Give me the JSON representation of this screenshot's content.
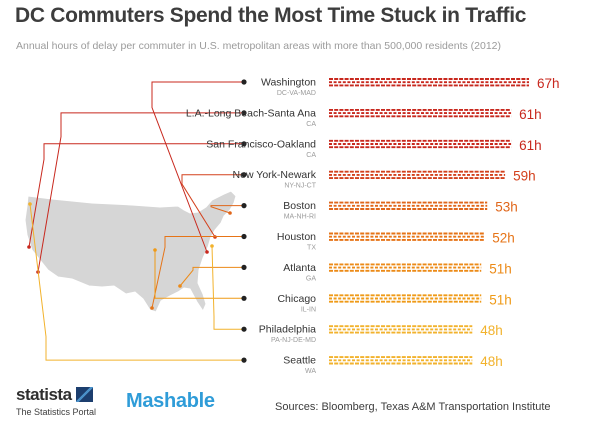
{
  "title": "DC Commuters Spend the Most Time Stuck in Traffic",
  "subtitle": "Annual hours of delay per commuter in U.S. metropolitan areas with more than 500,000 residents (2012)",
  "chart_data": {
    "type": "bar",
    "orientation": "horizontal",
    "unit_suffix": "h",
    "categories": [
      "Washington",
      "L.A.-Long Beach-Santa Ana",
      "San Francisco-Oakland",
      "New York-Newark",
      "Boston",
      "Houston",
      "Atlanta",
      "Chicago",
      "Philadelphia",
      "Seattle"
    ],
    "region_codes": [
      "DC-VA-MAD",
      "CA",
      "CA",
      "NY-NJ-CT",
      "MA-NH-RI",
      "TX",
      "GA",
      "IL-IN",
      "PA-NJ-DE-MD",
      "WA"
    ],
    "values": [
      67,
      61,
      61,
      59,
      53,
      52,
      51,
      51,
      48,
      48
    ],
    "value_labels": [
      "67h",
      "61h",
      "61h",
      "59h",
      "53h",
      "52h",
      "51h",
      "51h",
      "48h",
      "48h"
    ],
    "colors": [
      "#c8281e",
      "#c8281e",
      "#c8281e",
      "#d3401c",
      "#e0661a",
      "#e67417",
      "#ec8a17",
      "#ef9a17",
      "#f2b22c",
      "#f2b22c"
    ],
    "map_color": "#d6d6d6",
    "gridlines": false
  },
  "footer": {
    "brand": "statista",
    "brand_tagline": "The Statistics Portal",
    "partner": "Mashable",
    "source": "Sources: Bloomberg, Texas A&M Transportation Institute"
  }
}
